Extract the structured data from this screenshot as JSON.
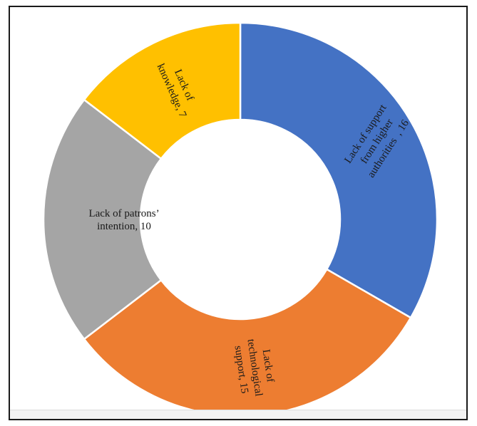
{
  "chart_data": {
    "type": "pie",
    "donut": true,
    "start": "12 o'clock",
    "direction": "clockwise",
    "slices": [
      {
        "label": "Lack of support from higher authorities",
        "value": 16,
        "display": [
          "Lack of support",
          "from higher",
          "authorities  , 16"
        ],
        "color": "#4472C4"
      },
      {
        "label": "Lack of technological support",
        "value": 15,
        "display": [
          "Lack of",
          "technological",
          "support, 15"
        ],
        "color": "#ED7D31"
      },
      {
        "label": "Lack of patrons' intention",
        "value": 10,
        "display": [
          "Lack of patrons’",
          "intention, 10"
        ],
        "color": "#A5A5A5"
      },
      {
        "label": "Lack of knowledge",
        "value": 7,
        "display": [
          "Lack of",
          "knowledge, 7"
        ],
        "color": "#FFC000"
      }
    ]
  }
}
